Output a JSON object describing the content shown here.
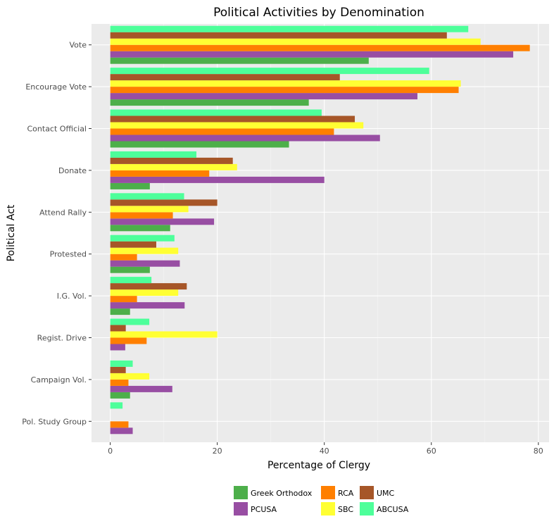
{
  "chart_data": {
    "type": "bar",
    "orientation": "horizontal",
    "title": "Political Activities by Denomination",
    "xlabel": "Percentage of Clergy",
    "ylabel": "Political Act",
    "xlim": [
      -3.5,
      82
    ],
    "xticks": [
      0,
      20,
      40,
      60,
      80
    ],
    "grid": true,
    "legend_position": "bottom",
    "categories": [
      "Vote",
      "Encourage Vote",
      "Contact Official",
      "Donate",
      "Attend Rally",
      "Protested",
      "I.G. Vol.",
      "Regist. Drive",
      "Campaign Vol.",
      "Pol. Study Group"
    ],
    "series": [
      {
        "name": "Greek Orthodox",
        "color": "#4daf4a",
        "values": [
          48.3,
          37.1,
          33.4,
          7.4,
          11.2,
          7.4,
          3.7,
          0,
          3.7,
          0
        ]
      },
      {
        "name": "PCUSA",
        "color": "#984ea3",
        "values": [
          75.3,
          57.4,
          50.4,
          40.0,
          19.4,
          13.0,
          13.9,
          2.8,
          11.6,
          4.2
        ]
      },
      {
        "name": "RCA",
        "color": "#ff7f00",
        "values": [
          78.4,
          65.1,
          41.8,
          18.5,
          11.7,
          5.0,
          5.0,
          6.8,
          3.4,
          3.4
        ]
      },
      {
        "name": "SBC",
        "color": "#ffff33",
        "values": [
          69.2,
          65.5,
          47.3,
          23.7,
          14.6,
          12.7,
          12.7,
          20.0,
          7.3,
          0
        ]
      },
      {
        "name": "UMC",
        "color": "#a65628",
        "values": [
          62.9,
          42.9,
          45.7,
          22.9,
          20.0,
          8.6,
          14.3,
          2.9,
          2.9,
          0
        ]
      },
      {
        "name": "ABCUSA",
        "color": "#4dff9a",
        "values": [
          66.9,
          59.6,
          39.5,
          16.1,
          13.8,
          12.0,
          7.7,
          7.3,
          4.2,
          2.3
        ]
      }
    ]
  }
}
